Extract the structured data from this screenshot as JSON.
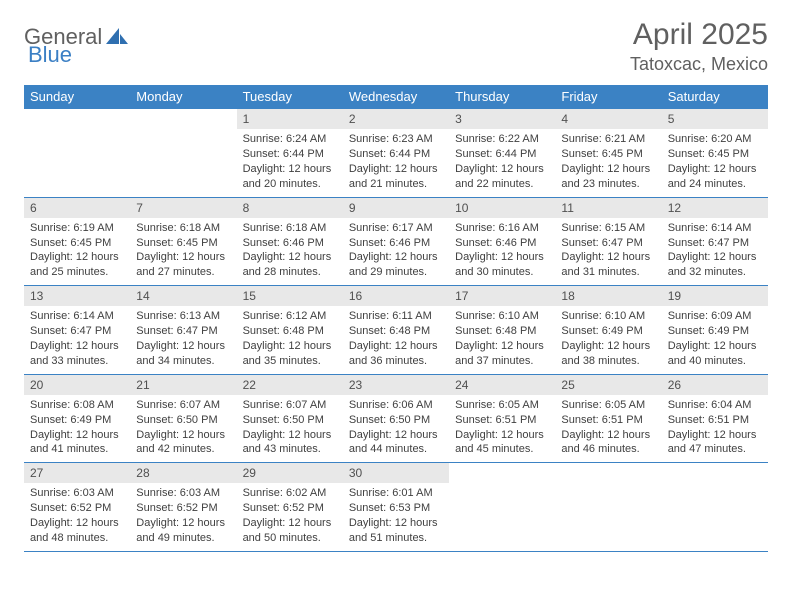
{
  "brand": {
    "part1": "General",
    "part2": "Blue"
  },
  "title": "April 2025",
  "location": "Tatoxcac, Mexico",
  "colors": {
    "header_bg": "#3b82c4",
    "header_text": "#ffffff",
    "daynum_bg": "#e8e8e8",
    "text": "#404040",
    "rule": "#3b82c4"
  },
  "typography": {
    "title_fontsize": 30,
    "location_fontsize": 18,
    "header_fontsize": 13,
    "body_fontsize": 11
  },
  "day_labels": [
    "Sunday",
    "Monday",
    "Tuesday",
    "Wednesday",
    "Thursday",
    "Friday",
    "Saturday"
  ],
  "weeks": [
    [
      {
        "n": "",
        "sr": "",
        "ss": "",
        "dl": ""
      },
      {
        "n": "",
        "sr": "",
        "ss": "",
        "dl": ""
      },
      {
        "n": "1",
        "sr": "Sunrise: 6:24 AM",
        "ss": "Sunset: 6:44 PM",
        "dl": "Daylight: 12 hours and 20 minutes."
      },
      {
        "n": "2",
        "sr": "Sunrise: 6:23 AM",
        "ss": "Sunset: 6:44 PM",
        "dl": "Daylight: 12 hours and 21 minutes."
      },
      {
        "n": "3",
        "sr": "Sunrise: 6:22 AM",
        "ss": "Sunset: 6:44 PM",
        "dl": "Daylight: 12 hours and 22 minutes."
      },
      {
        "n": "4",
        "sr": "Sunrise: 6:21 AM",
        "ss": "Sunset: 6:45 PM",
        "dl": "Daylight: 12 hours and 23 minutes."
      },
      {
        "n": "5",
        "sr": "Sunrise: 6:20 AM",
        "ss": "Sunset: 6:45 PM",
        "dl": "Daylight: 12 hours and 24 minutes."
      }
    ],
    [
      {
        "n": "6",
        "sr": "Sunrise: 6:19 AM",
        "ss": "Sunset: 6:45 PM",
        "dl": "Daylight: 12 hours and 25 minutes."
      },
      {
        "n": "7",
        "sr": "Sunrise: 6:18 AM",
        "ss": "Sunset: 6:45 PM",
        "dl": "Daylight: 12 hours and 27 minutes."
      },
      {
        "n": "8",
        "sr": "Sunrise: 6:18 AM",
        "ss": "Sunset: 6:46 PM",
        "dl": "Daylight: 12 hours and 28 minutes."
      },
      {
        "n": "9",
        "sr": "Sunrise: 6:17 AM",
        "ss": "Sunset: 6:46 PM",
        "dl": "Daylight: 12 hours and 29 minutes."
      },
      {
        "n": "10",
        "sr": "Sunrise: 6:16 AM",
        "ss": "Sunset: 6:46 PM",
        "dl": "Daylight: 12 hours and 30 minutes."
      },
      {
        "n": "11",
        "sr": "Sunrise: 6:15 AM",
        "ss": "Sunset: 6:47 PM",
        "dl": "Daylight: 12 hours and 31 minutes."
      },
      {
        "n": "12",
        "sr": "Sunrise: 6:14 AM",
        "ss": "Sunset: 6:47 PM",
        "dl": "Daylight: 12 hours and 32 minutes."
      }
    ],
    [
      {
        "n": "13",
        "sr": "Sunrise: 6:14 AM",
        "ss": "Sunset: 6:47 PM",
        "dl": "Daylight: 12 hours and 33 minutes."
      },
      {
        "n": "14",
        "sr": "Sunrise: 6:13 AM",
        "ss": "Sunset: 6:47 PM",
        "dl": "Daylight: 12 hours and 34 minutes."
      },
      {
        "n": "15",
        "sr": "Sunrise: 6:12 AM",
        "ss": "Sunset: 6:48 PM",
        "dl": "Daylight: 12 hours and 35 minutes."
      },
      {
        "n": "16",
        "sr": "Sunrise: 6:11 AM",
        "ss": "Sunset: 6:48 PM",
        "dl": "Daylight: 12 hours and 36 minutes."
      },
      {
        "n": "17",
        "sr": "Sunrise: 6:10 AM",
        "ss": "Sunset: 6:48 PM",
        "dl": "Daylight: 12 hours and 37 minutes."
      },
      {
        "n": "18",
        "sr": "Sunrise: 6:10 AM",
        "ss": "Sunset: 6:49 PM",
        "dl": "Daylight: 12 hours and 38 minutes."
      },
      {
        "n": "19",
        "sr": "Sunrise: 6:09 AM",
        "ss": "Sunset: 6:49 PM",
        "dl": "Daylight: 12 hours and 40 minutes."
      }
    ],
    [
      {
        "n": "20",
        "sr": "Sunrise: 6:08 AM",
        "ss": "Sunset: 6:49 PM",
        "dl": "Daylight: 12 hours and 41 minutes."
      },
      {
        "n": "21",
        "sr": "Sunrise: 6:07 AM",
        "ss": "Sunset: 6:50 PM",
        "dl": "Daylight: 12 hours and 42 minutes."
      },
      {
        "n": "22",
        "sr": "Sunrise: 6:07 AM",
        "ss": "Sunset: 6:50 PM",
        "dl": "Daylight: 12 hours and 43 minutes."
      },
      {
        "n": "23",
        "sr": "Sunrise: 6:06 AM",
        "ss": "Sunset: 6:50 PM",
        "dl": "Daylight: 12 hours and 44 minutes."
      },
      {
        "n": "24",
        "sr": "Sunrise: 6:05 AM",
        "ss": "Sunset: 6:51 PM",
        "dl": "Daylight: 12 hours and 45 minutes."
      },
      {
        "n": "25",
        "sr": "Sunrise: 6:05 AM",
        "ss": "Sunset: 6:51 PM",
        "dl": "Daylight: 12 hours and 46 minutes."
      },
      {
        "n": "26",
        "sr": "Sunrise: 6:04 AM",
        "ss": "Sunset: 6:51 PM",
        "dl": "Daylight: 12 hours and 47 minutes."
      }
    ],
    [
      {
        "n": "27",
        "sr": "Sunrise: 6:03 AM",
        "ss": "Sunset: 6:52 PM",
        "dl": "Daylight: 12 hours and 48 minutes."
      },
      {
        "n": "28",
        "sr": "Sunrise: 6:03 AM",
        "ss": "Sunset: 6:52 PM",
        "dl": "Daylight: 12 hours and 49 minutes."
      },
      {
        "n": "29",
        "sr": "Sunrise: 6:02 AM",
        "ss": "Sunset: 6:52 PM",
        "dl": "Daylight: 12 hours and 50 minutes."
      },
      {
        "n": "30",
        "sr": "Sunrise: 6:01 AM",
        "ss": "Sunset: 6:53 PM",
        "dl": "Daylight: 12 hours and 51 minutes."
      },
      {
        "n": "",
        "sr": "",
        "ss": "",
        "dl": ""
      },
      {
        "n": "",
        "sr": "",
        "ss": "",
        "dl": ""
      },
      {
        "n": "",
        "sr": "",
        "ss": "",
        "dl": ""
      }
    ]
  ]
}
